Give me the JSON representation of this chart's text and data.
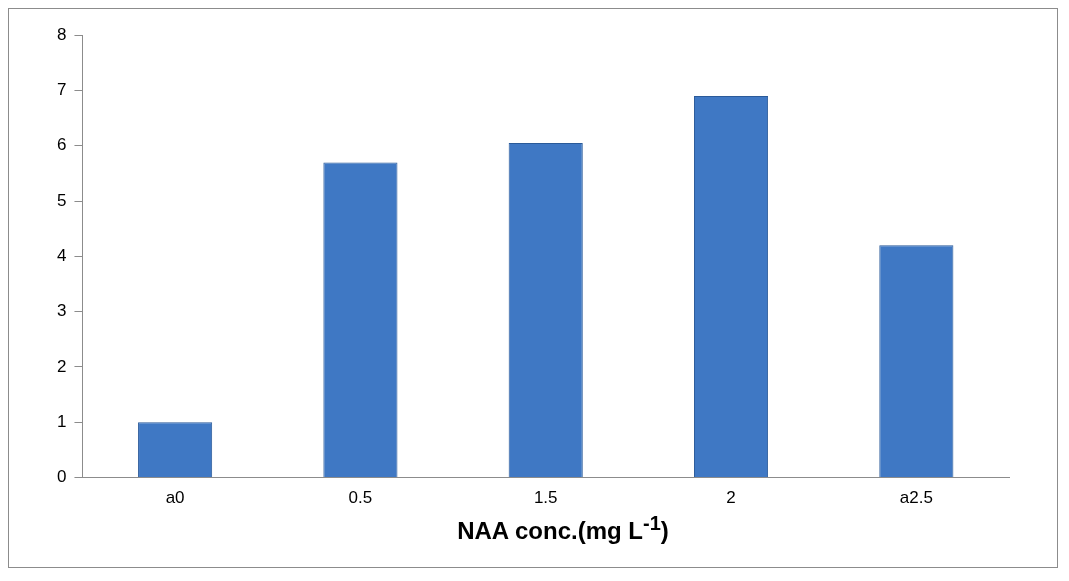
{
  "chart_data": {
    "type": "bar",
    "xlabel": "NAA conc.(mg L$^{-1}$)",
    "categories": [
      "a0",
      "0.5",
      "1.5",
      "2",
      "a2.5"
    ],
    "values": [
      1.0,
      5.7,
      6.05,
      6.9,
      4.2
    ],
    "color": "#3f78c4",
    "ylim": [
      0,
      8
    ],
    "yticks": [
      0,
      1,
      2,
      3,
      4,
      5,
      6,
      7,
      8
    ],
    "grid": false
  }
}
